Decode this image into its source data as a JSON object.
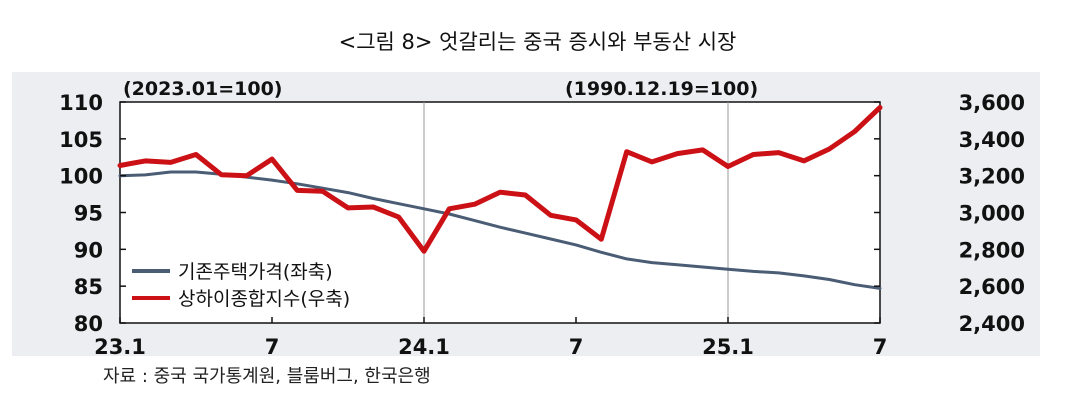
{
  "title": "<그림 8> 엇갈리는 중국 증시와 부동산 시장",
  "source": "자료 : 중국 국가통계원, 블룸버그, 한국은행",
  "chart_data": {
    "type": "line",
    "left_axis_note": "(2023.01=100)",
    "right_axis_note": "(1990.12.19=100)",
    "x": [
      "23.1",
      "23.2",
      "23.3",
      "23.4",
      "23.5",
      "23.6",
      "23.7",
      "23.8",
      "23.9",
      "23.10",
      "23.11",
      "23.12",
      "24.1",
      "24.2",
      "24.3",
      "24.4",
      "24.5",
      "24.6",
      "24.7",
      "24.8",
      "24.9",
      "24.10",
      "24.11",
      "24.12",
      "25.1",
      "25.2",
      "25.3",
      "25.4",
      "25.5",
      "25.6",
      "25.7"
    ],
    "x_tick_labels": [
      "23.1",
      "7",
      "24.1",
      "7",
      "25.1",
      "7"
    ],
    "x_tick_index": [
      0,
      6,
      12,
      18,
      24,
      30
    ],
    "series": [
      {
        "name": "기존주택가격(좌축)",
        "axis": "left",
        "color": "#4a5d75",
        "values": [
          100.0,
          100.1,
          100.5,
          100.5,
          100.2,
          99.8,
          99.4,
          98.9,
          98.3,
          97.7,
          96.9,
          96.2,
          95.5,
          94.8,
          93.9,
          93.0,
          92.2,
          91.4,
          90.6,
          89.6,
          88.7,
          88.2,
          87.9,
          87.6,
          87.3,
          87.0,
          86.8,
          86.4,
          85.9,
          85.2,
          84.7
        ]
      },
      {
        "name": "상하이종합지수(우축)",
        "axis": "right",
        "color": "#cc1116",
        "values": [
          3255,
          3280,
          3272,
          3315,
          3205,
          3200,
          3290,
          3120,
          3115,
          3025,
          3030,
          2975,
          2790,
          3020,
          3045,
          3110,
          3095,
          2985,
          2960,
          2855,
          3330,
          3275,
          3320,
          3340,
          3250,
          3315,
          3325,
          3280,
          3345,
          3440,
          3570
        ]
      }
    ],
    "left_axis": {
      "min": 80,
      "max": 110,
      "ticks": [
        "80",
        "85",
        "90",
        "95",
        "100",
        "105",
        "110"
      ]
    },
    "right_axis": {
      "min": 2400,
      "max": 3600,
      "ticks": [
        "2,400",
        "2,600",
        "2,800",
        "3,000",
        "3,200",
        "3,400",
        "3,600"
      ]
    },
    "grid": "vertical lines at year boundaries"
  }
}
